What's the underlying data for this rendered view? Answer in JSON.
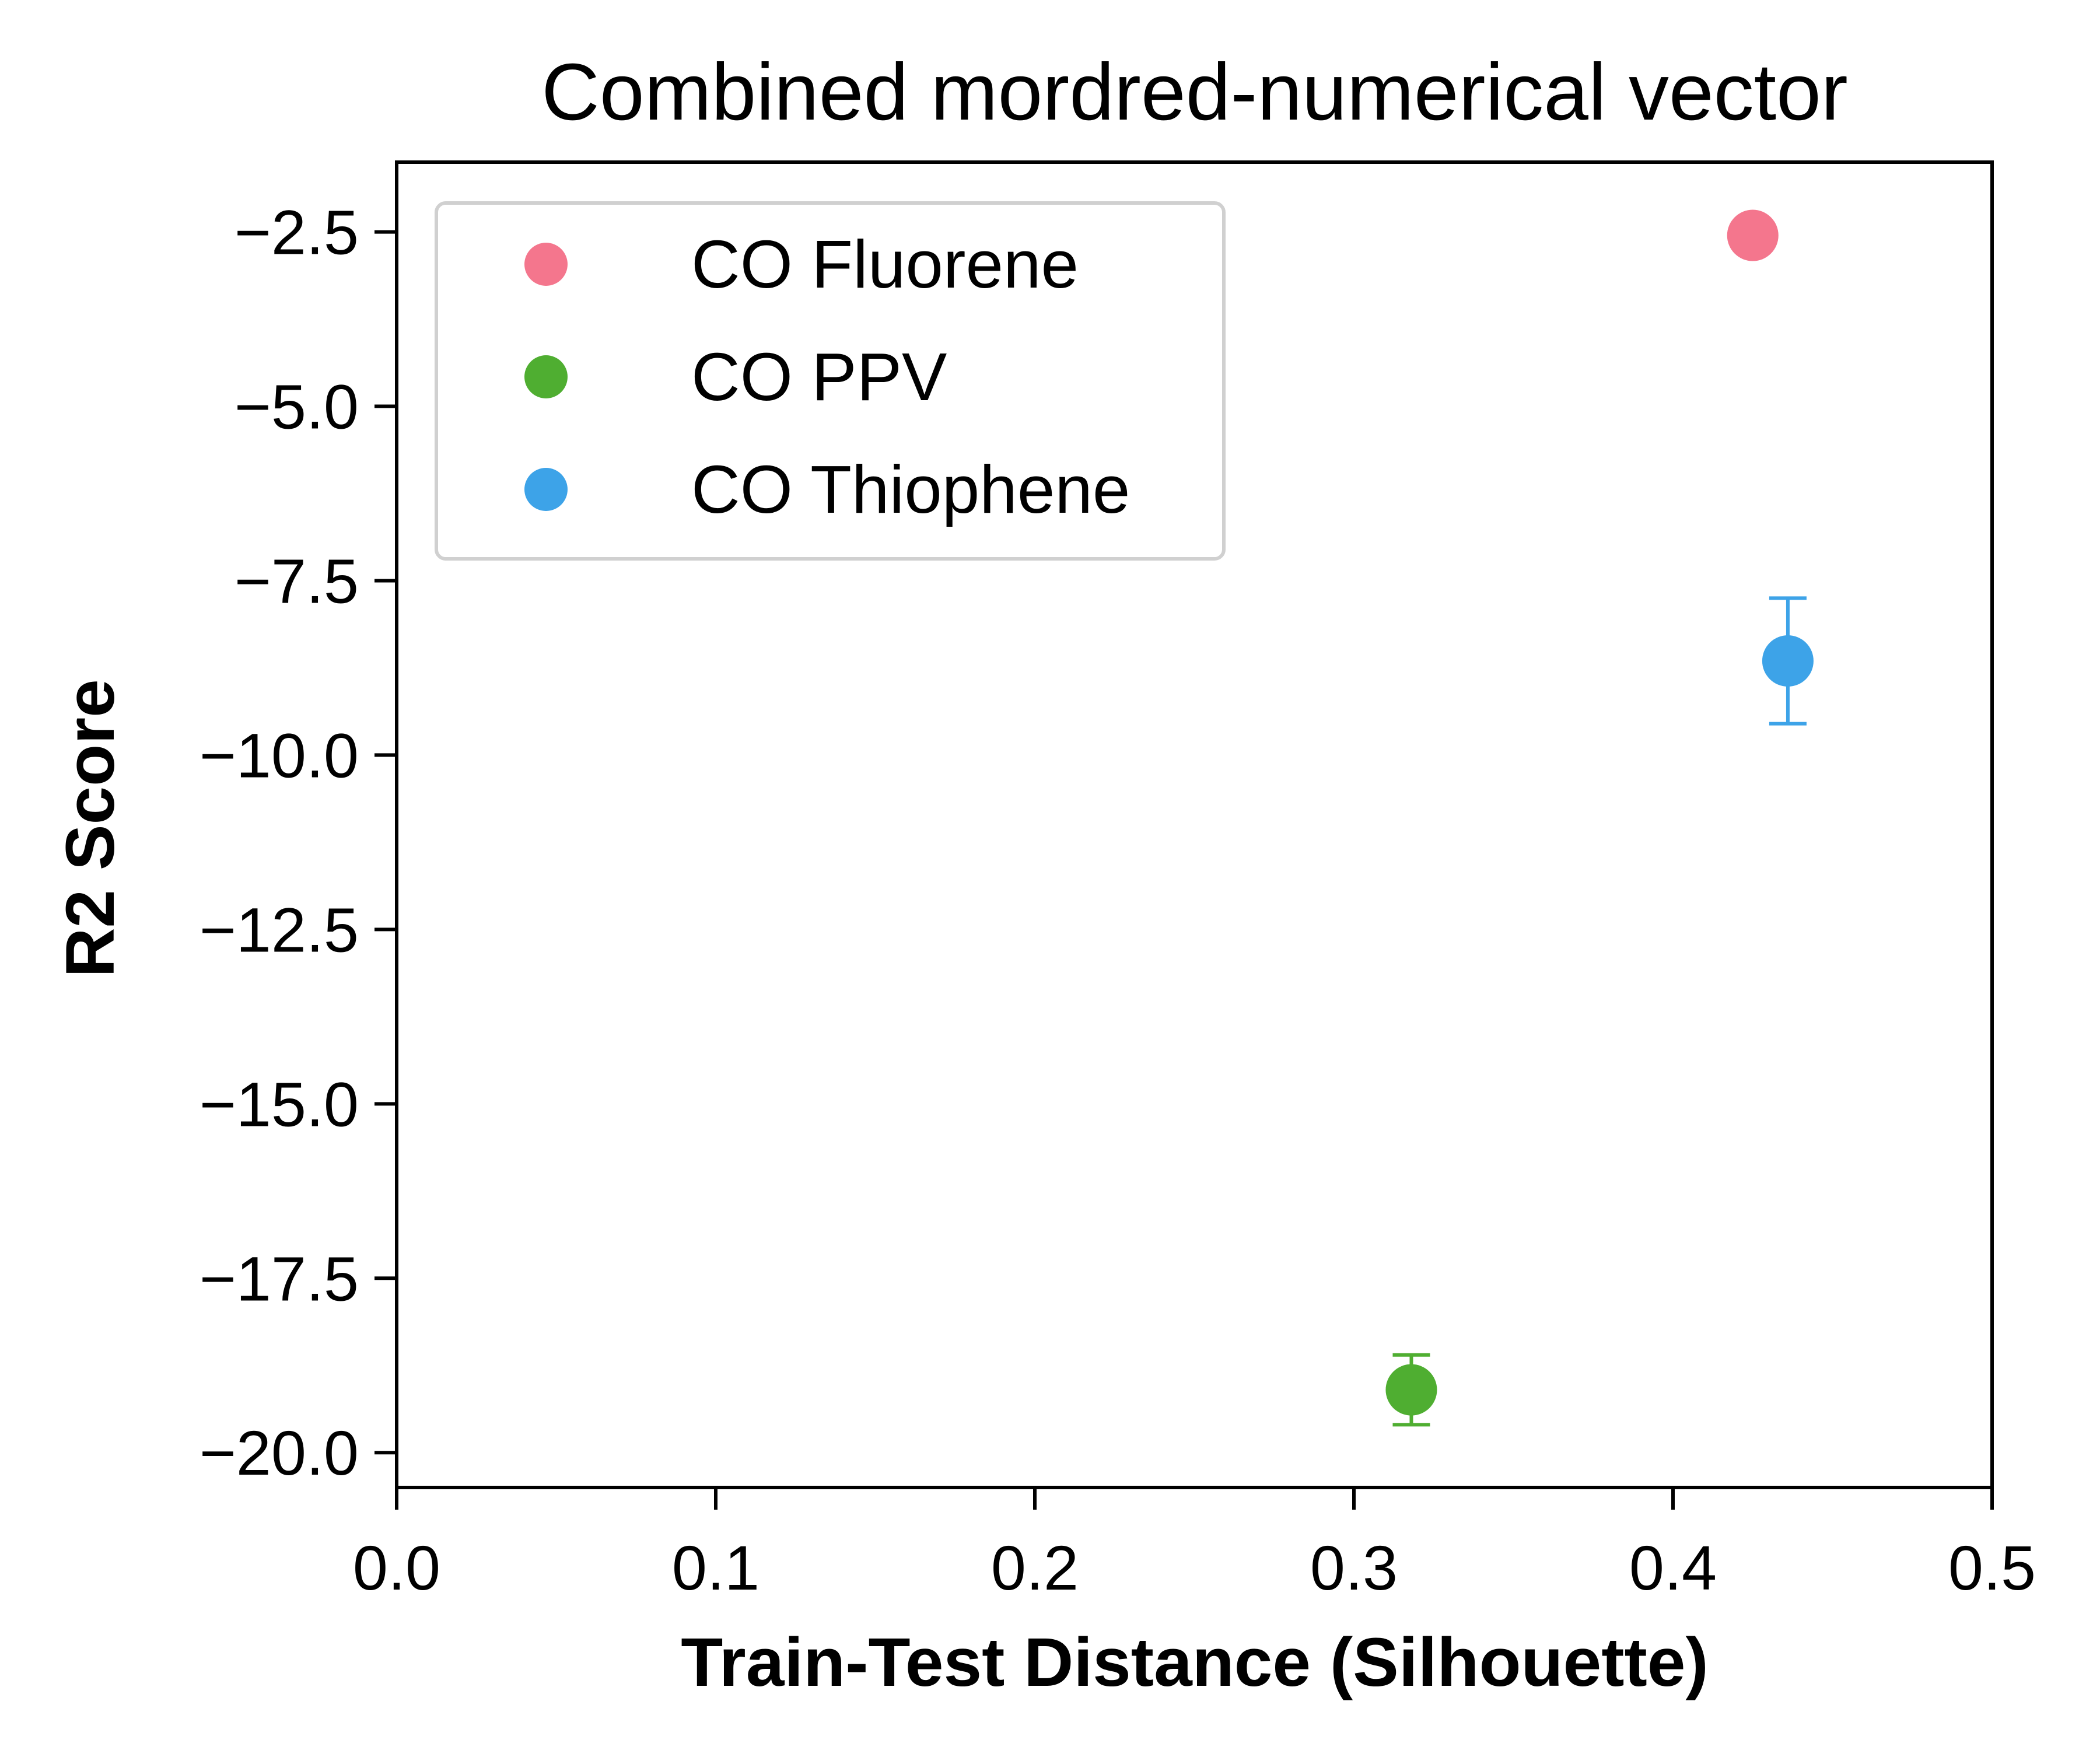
{
  "chart_data": {
    "type": "scatter",
    "title": "Combined mordred-numerical vector",
    "xlabel": "Train-Test Distance (Silhouette)",
    "ylabel": "R2 Score",
    "xlim": [
      0.0,
      0.5
    ],
    "ylim": [
      -20.5,
      -1.5
    ],
    "xticks": [
      0.0,
      0.1,
      0.2,
      0.3,
      0.4,
      0.5
    ],
    "xtick_labels": [
      "0.0",
      "0.1",
      "0.2",
      "0.3",
      "0.4",
      "0.5"
    ],
    "yticks": [
      -2.5,
      -5.0,
      -7.5,
      -10.0,
      -12.5,
      -15.0,
      -17.5,
      -20.0
    ],
    "ytick_labels": [
      "−2.5",
      "−5.0",
      "−7.5",
      "−10.0",
      "−12.5",
      "−15.0",
      "−17.5",
      "−20.0"
    ],
    "grid": false,
    "legend_position": "top-left",
    "series": [
      {
        "name": "CO Fluorene",
        "color": "#f4768d",
        "points": [
          {
            "x": 0.425,
            "y": -2.55,
            "err": 0.0
          }
        ]
      },
      {
        "name": "CO PPV",
        "color": "#4fae31",
        "points": [
          {
            "x": 0.318,
            "y": -19.1,
            "err": 0.5
          }
        ]
      },
      {
        "name": "CO Thiophene",
        "color": "#3da3e8",
        "points": [
          {
            "x": 0.436,
            "y": -8.65,
            "err": 0.9
          }
        ]
      }
    ]
  }
}
